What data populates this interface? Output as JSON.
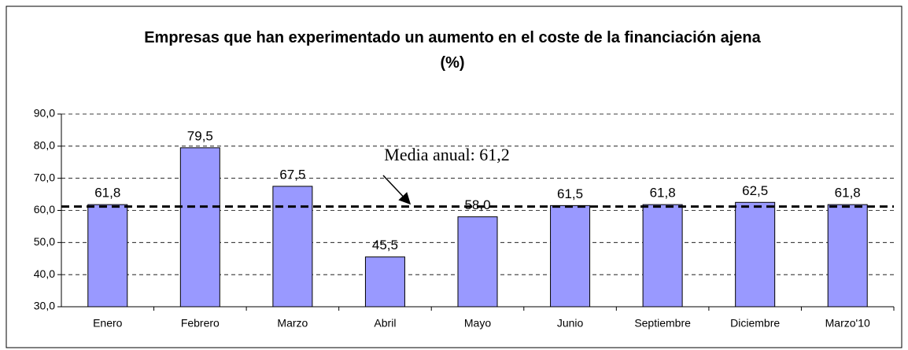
{
  "chart_data": {
    "type": "bar",
    "title": "Empresas que han experimentado un aumento en el coste de la financiación ajena (%)",
    "categories": [
      "Enero",
      "Febrero",
      "Marzo",
      "Abril",
      "Mayo",
      "Junio",
      "Septiembre",
      "Diciembre",
      "Marzo'10"
    ],
    "values": [
      61.8,
      79.5,
      67.5,
      45.5,
      58.0,
      61.5,
      61.8,
      62.5,
      61.8
    ],
    "value_labels": [
      "61,8",
      "79,5",
      "67,5",
      "45,5",
      "58,0",
      "61,5",
      "61,8",
      "62,5",
      "61,8"
    ],
    "color": "#9999ff",
    "ylim": [
      30,
      90
    ],
    "yticks": [
      {
        "value": 30,
        "label": "30,0"
      },
      {
        "value": 40,
        "label": "40,0"
      },
      {
        "value": 50,
        "label": "50,0"
      },
      {
        "value": 60,
        "label": "60,0"
      },
      {
        "value": 70,
        "label": "70,0"
      },
      {
        "value": 80,
        "label": "80,0"
      },
      {
        "value": 90,
        "label": "90,0"
      }
    ],
    "grid": true,
    "reference_line": {
      "value": 61.2,
      "label": "Media anual: 61,2"
    }
  }
}
